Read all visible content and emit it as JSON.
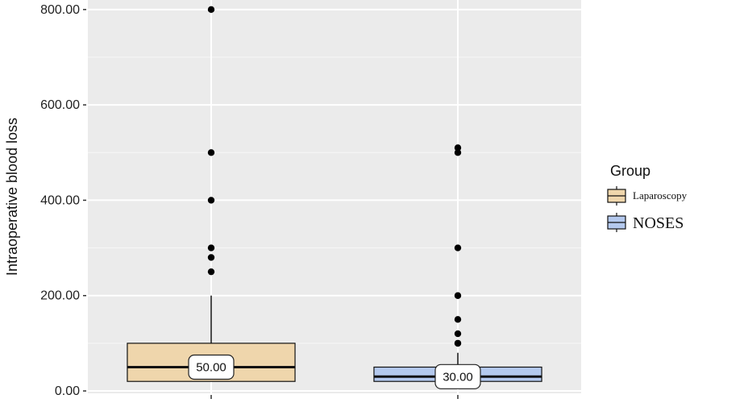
{
  "chart_data": {
    "type": "box",
    "ylabel": "Intraoperative blood loss",
    "ylim": [
      -5,
      820
    ],
    "yticks": [
      0,
      200,
      400,
      600,
      800
    ],
    "ytick_labels": [
      "0.00",
      "200.00",
      "400.00",
      "600.00",
      "800.00"
    ],
    "grid": true,
    "legend": {
      "title": "Group",
      "placement": "right",
      "entries": [
        "Laparoscopy",
        "NOSES"
      ]
    },
    "series": [
      {
        "name": "Laparoscopy",
        "color": "#efd6ac",
        "q1": 20,
        "median": 50,
        "q3": 100,
        "whisker_low": 20,
        "whisker_high": 200,
        "outliers": [
          250,
          280,
          300,
          400,
          500,
          800
        ],
        "median_label": "50.00"
      },
      {
        "name": "NOSES",
        "color": "#b4c9ee",
        "q1": 20,
        "median": 30,
        "q3": 50,
        "whisker_low": 20,
        "whisker_high": 80,
        "outliers": [
          100,
          100,
          120,
          150,
          200,
          300,
          500,
          510
        ],
        "median_label": "30.00"
      }
    ]
  }
}
